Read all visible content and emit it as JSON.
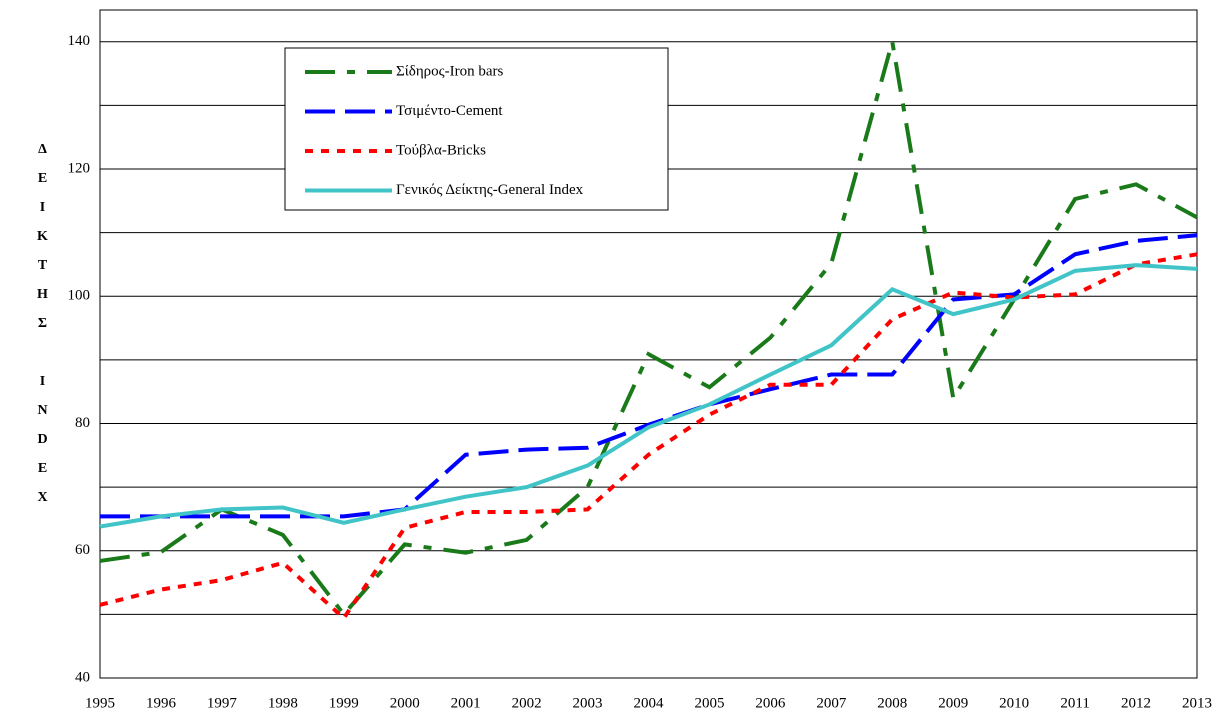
{
  "chart_data": {
    "type": "line",
    "y_label": "ΔΕΙΚΤΗΣ INDEX",
    "categories": [
      "1995",
      "1996",
      "1997",
      "1998",
      "1999",
      "2000",
      "2001",
      "2002",
      "2003",
      "2004",
      "2005",
      "2006",
      "2007",
      "2008",
      "2009",
      "2010",
      "2011",
      "2012",
      "2013"
    ],
    "series": [
      {
        "name": "Σίδηρος-Iron bars",
        "color": "#1a7a1a",
        "dash": "30,12,8,12",
        "values": [
          58.4,
          59.8,
          66.5,
          62.5,
          50,
          61,
          59.7,
          61.7,
          70,
          90.9,
          85.7,
          93.5,
          105.2,
          140,
          84,
          99.5,
          115.3,
          117.6,
          112.4
        ]
      },
      {
        "name": "Τσιμέντο-Cement",
        "color": "#0000ff",
        "dash": "30,10",
        "values": [
          65.4,
          65.4,
          65.4,
          65.4,
          65.4,
          66.5,
          75.1,
          75.9,
          76.2,
          79.8,
          83,
          85.4,
          87.7,
          87.7,
          99.5,
          100.3,
          106.6,
          108.7,
          109.6
        ]
      },
      {
        "name": "Τούβλα-Bricks",
        "color": "#ff0000",
        "dash": "8,8",
        "values": [
          51.5,
          53.9,
          55.4,
          58.1,
          49.4,
          63.6,
          66.1,
          66.1,
          66.5,
          75.1,
          81.4,
          86.1,
          86.1,
          96.4,
          100.6,
          99.8,
          100.3,
          105,
          106.6
        ]
      },
      {
        "name": "Γενικός Δείκτης-General Index",
        "color": "#40c4c8",
        "dash": "none",
        "values": [
          63.8,
          65.4,
          66.5,
          66.8,
          64.4,
          66.5,
          68.5,
          70,
          73.4,
          79.4,
          83,
          87.7,
          92.3,
          101.1,
          97.2,
          99.5,
          104,
          104.9,
          104.3
        ]
      }
    ],
    "ylim": [
      40,
      145
    ],
    "yticks": [
      40,
      60,
      80,
      100,
      120,
      140
    ],
    "minor_yticks": [
      50,
      70,
      90,
      110,
      130
    ],
    "grid": true
  }
}
